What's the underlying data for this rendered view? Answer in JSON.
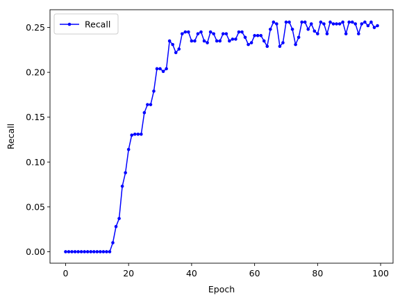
{
  "chart_data": {
    "type": "line",
    "x": [
      0,
      1,
      2,
      3,
      4,
      5,
      6,
      7,
      8,
      9,
      10,
      11,
      12,
      13,
      14,
      15,
      16,
      17,
      18,
      19,
      20,
      21,
      22,
      23,
      24,
      25,
      26,
      27,
      28,
      29,
      30,
      31,
      32,
      33,
      34,
      35,
      36,
      37,
      38,
      39,
      40,
      41,
      42,
      43,
      44,
      45,
      46,
      47,
      48,
      49,
      50,
      51,
      52,
      53,
      54,
      55,
      56,
      57,
      58,
      59,
      60,
      61,
      62,
      63,
      64,
      65,
      66,
      67,
      68,
      69,
      70,
      71,
      72,
      73,
      74,
      75,
      76,
      77,
      78,
      79,
      80,
      81,
      82,
      83,
      84,
      85,
      86,
      87,
      88,
      89,
      90,
      91,
      92,
      93,
      94,
      95,
      96,
      97,
      98,
      99
    ],
    "series": [
      {
        "name": "Recall",
        "color": "#0000ff",
        "values": [
          0,
          0,
          0,
          0,
          0,
          0,
          0,
          0,
          0,
          0,
          0,
          0,
          0,
          0,
          0,
          0.01,
          0.028,
          0.037,
          0.073,
          0.088,
          0.114,
          0.13,
          0.131,
          0.131,
          0.131,
          0.155,
          0.164,
          0.164,
          0.179,
          0.204,
          0.204,
          0.201,
          0.204,
          0.235,
          0.231,
          0.222,
          0.226,
          0.243,
          0.245,
          0.245,
          0.235,
          0.235,
          0.243,
          0.245,
          0.235,
          0.233,
          0.245,
          0.243,
          0.235,
          0.235,
          0.243,
          0.243,
          0.235,
          0.237,
          0.237,
          0.245,
          0.245,
          0.239,
          0.231,
          0.233,
          0.241,
          0.241,
          0.241,
          0.235,
          0.229,
          0.248,
          0.256,
          0.254,
          0.229,
          0.233,
          0.256,
          0.256,
          0.248,
          0.231,
          0.239,
          0.256,
          0.256,
          0.248,
          0.254,
          0.246,
          0.243,
          0.256,
          0.254,
          0.243,
          0.256,
          0.254,
          0.254,
          0.254,
          0.256,
          0.243,
          0.256,
          0.256,
          0.254,
          0.243,
          0.254,
          0.256,
          0.252,
          0.256,
          0.25,
          0.252
        ]
      }
    ],
    "xlabel": "Epoch",
    "ylabel": "Recall",
    "xlim": [
      -4.95,
      103.95
    ],
    "xticks": [
      0,
      20,
      40,
      60,
      80,
      100
    ],
    "ylim": [
      -0.0128,
      0.2698
    ],
    "yticks": [
      {
        "value": 0,
        "label": "0.00"
      },
      {
        "value": 0.05,
        "label": "0.05"
      },
      {
        "value": 0.1,
        "label": "0.10"
      },
      {
        "value": 0.15,
        "label": "0.15"
      },
      {
        "value": 0.2,
        "label": "0.20"
      },
      {
        "value": 0.25,
        "label": "0.25"
      }
    ],
    "legend": "upper left",
    "grid": false
  }
}
